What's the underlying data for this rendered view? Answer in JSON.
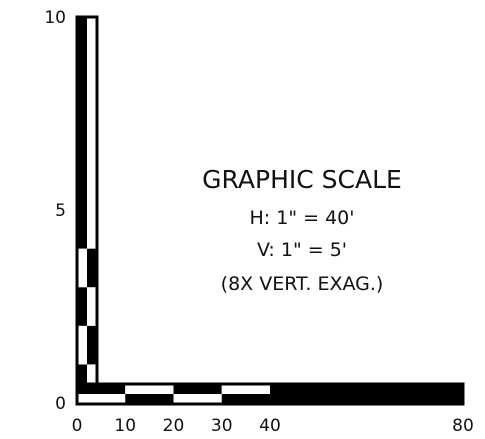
{
  "title": "GRAPHIC SCALE",
  "notes": {
    "horizontal": "H:  1\" = 40'",
    "vertical": "V:  1\" = 5'",
    "exaggeration": "(8X VERT. EXAG.)"
  },
  "vertical_scale": {
    "min": 0,
    "max": 10,
    "tick_labels": [
      "0",
      "5",
      "10"
    ],
    "segments": [
      {
        "from": 0,
        "to": 1,
        "color": "#000000"
      },
      {
        "from": 1,
        "to": 2,
        "color": "#ffffff"
      },
      {
        "from": 2,
        "to": 3,
        "color": "#000000"
      },
      {
        "from": 3,
        "to": 4,
        "color": "#ffffff"
      },
      {
        "from": 4,
        "to": 5,
        "color": "#000000"
      },
      {
        "from": 5,
        "to": 10,
        "color": "#000000"
      }
    ]
  },
  "horizontal_scale": {
    "min": 0,
    "max": 80,
    "tick_labels": [
      "0",
      "10",
      "20",
      "30",
      "40",
      "80"
    ],
    "segments": [
      {
        "from": 0,
        "to": 10,
        "color": "#000000"
      },
      {
        "from": 10,
        "to": 20,
        "color": "#ffffff"
      },
      {
        "from": 20,
        "to": 30,
        "color": "#000000"
      },
      {
        "from": 30,
        "to": 40,
        "color": "#ffffff"
      },
      {
        "from": 40,
        "to": 80,
        "color": "#000000"
      }
    ]
  },
  "colors": {
    "ink": "#000000",
    "paper": "#ffffff"
  }
}
